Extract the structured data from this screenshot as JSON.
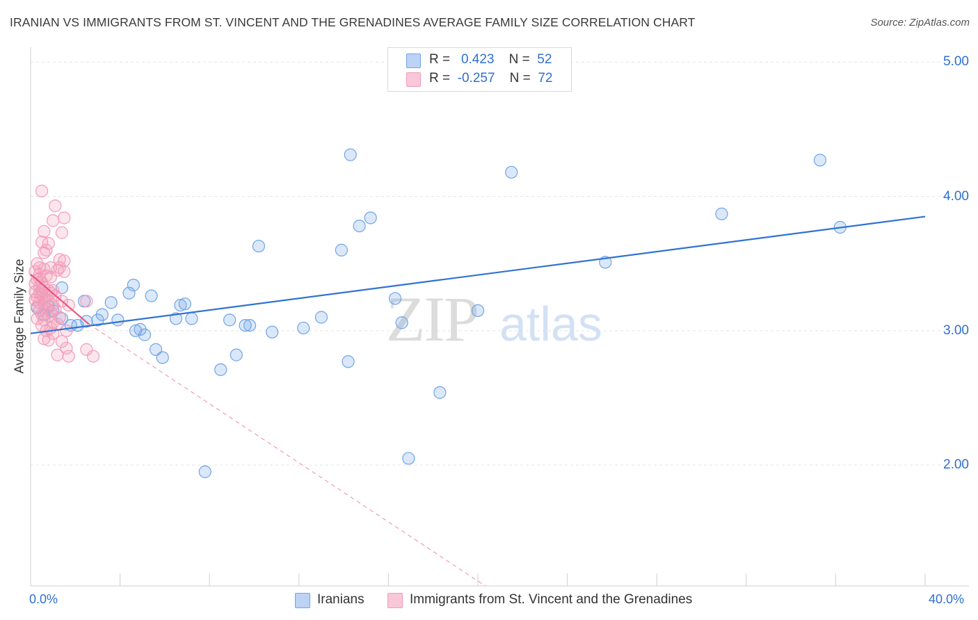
{
  "chart_data": {
    "type": "scatter",
    "title": "IRANIAN VS IMMIGRANTS FROM ST. VINCENT AND THE GRENADINES AVERAGE FAMILY SIZE CORRELATION CHART",
    "source": "Source: ZipAtlas.com",
    "ylabel": "Average Family Size",
    "xlim": [
      0,
      40
    ],
    "ylim": [
      1.1,
      5.1
    ],
    "y_ticks": [
      "2.00",
      "3.00",
      "4.00",
      "5.00"
    ],
    "x_tick_labels": [
      "0.0%",
      "40.0%"
    ],
    "grid": true,
    "legend_position": "top-center",
    "watermark": "ZIPatlas",
    "series": [
      {
        "name": "Iranians",
        "color": "#6fa3e6",
        "line_color": "#2f72d2",
        "r": "0.423",
        "n": "52",
        "trend": [
          [
            0,
            2.98
          ],
          [
            40,
            3.85
          ]
        ],
        "points": [
          [
            0.3,
            3.17
          ],
          [
            1.4,
            3.09
          ],
          [
            1.8,
            3.04
          ],
          [
            1.4,
            3.32
          ],
          [
            2.4,
            3.22
          ],
          [
            2.5,
            3.07
          ],
          [
            3.0,
            3.08
          ],
          [
            3.2,
            3.12
          ],
          [
            3.6,
            3.21
          ],
          [
            3.9,
            3.08
          ],
          [
            4.6,
            3.34
          ],
          [
            4.4,
            3.28
          ],
          [
            4.7,
            3.0
          ],
          [
            4.9,
            3.01
          ],
          [
            5.1,
            2.97
          ],
          [
            5.4,
            3.26
          ],
          [
            5.6,
            2.86
          ],
          [
            5.9,
            2.8
          ],
          [
            6.5,
            3.09
          ],
          [
            6.7,
            3.19
          ],
          [
            6.9,
            3.2
          ],
          [
            7.2,
            3.09
          ],
          [
            7.8,
            1.95
          ],
          [
            8.5,
            2.71
          ],
          [
            8.9,
            3.08
          ],
          [
            9.2,
            2.82
          ],
          [
            9.6,
            3.04
          ],
          [
            9.8,
            3.04
          ],
          [
            10.2,
            3.63
          ],
          [
            10.8,
            2.99
          ],
          [
            12.2,
            3.02
          ],
          [
            13.0,
            3.1
          ],
          [
            13.9,
            3.6
          ],
          [
            14.3,
            4.31
          ],
          [
            14.2,
            2.77
          ],
          [
            14.7,
            3.78
          ],
          [
            15.2,
            3.84
          ],
          [
            16.3,
            3.24
          ],
          [
            16.6,
            3.06
          ],
          [
            16.9,
            2.05
          ],
          [
            18.3,
            2.54
          ],
          [
            20.0,
            3.15
          ],
          [
            21.5,
            4.18
          ],
          [
            25.7,
            3.51
          ],
          [
            30.9,
            3.87
          ],
          [
            35.3,
            4.27
          ],
          [
            36.2,
            3.77
          ],
          [
            0.5,
            3.3
          ],
          [
            1.0,
            3.15
          ],
          [
            0.8,
            3.18
          ],
          [
            2.1,
            3.04
          ],
          [
            0.6,
            3.12
          ]
        ]
      },
      {
        "name": "Immigrants from St. Vincent and the Grenadines",
        "color": "#f29cb8",
        "line_color": "#e8557f",
        "r": "-0.257",
        "n": "72",
        "trend": [
          [
            0,
            3.42
          ],
          [
            2.6,
            3.05
          ]
        ],
        "trend_extended": [
          [
            2.6,
            3.05
          ],
          [
            21.7,
            0.95
          ]
        ],
        "points": [
          [
            0.5,
            4.04
          ],
          [
            1.1,
            3.93
          ],
          [
            1.5,
            3.84
          ],
          [
            1.0,
            3.82
          ],
          [
            1.4,
            3.73
          ],
          [
            0.6,
            3.74
          ],
          [
            0.8,
            3.65
          ],
          [
            0.5,
            3.66
          ],
          [
            0.6,
            3.58
          ],
          [
            0.7,
            3.6
          ],
          [
            1.3,
            3.53
          ],
          [
            1.5,
            3.52
          ],
          [
            0.3,
            3.5
          ],
          [
            0.4,
            3.47
          ],
          [
            0.6,
            3.46
          ],
          [
            0.9,
            3.47
          ],
          [
            1.2,
            3.45
          ],
          [
            1.5,
            3.44
          ],
          [
            0.2,
            3.44
          ],
          [
            0.4,
            3.42
          ],
          [
            0.7,
            3.41
          ],
          [
            0.9,
            3.4
          ],
          [
            0.3,
            3.38
          ],
          [
            0.5,
            3.36
          ],
          [
            0.2,
            3.35
          ],
          [
            0.4,
            3.33
          ],
          [
            0.6,
            3.32
          ],
          [
            0.8,
            3.3
          ],
          [
            1.0,
            3.3
          ],
          [
            0.2,
            3.29
          ],
          [
            0.4,
            3.28
          ],
          [
            0.5,
            3.27
          ],
          [
            0.7,
            3.26
          ],
          [
            1.1,
            3.26
          ],
          [
            0.3,
            3.25
          ],
          [
            0.6,
            3.24
          ],
          [
            0.2,
            3.23
          ],
          [
            0.8,
            3.22
          ],
          [
            1.4,
            3.22
          ],
          [
            2.5,
            3.22
          ],
          [
            0.4,
            3.21
          ],
          [
            0.6,
            3.2
          ],
          [
            1.0,
            3.19
          ],
          [
            1.7,
            3.19
          ],
          [
            0.3,
            3.18
          ],
          [
            0.7,
            3.17
          ],
          [
            1.1,
            3.16
          ],
          [
            0.4,
            3.15
          ],
          [
            0.9,
            3.14
          ],
          [
            0.5,
            3.12
          ],
          [
            0.8,
            3.11
          ],
          [
            1.3,
            3.1
          ],
          [
            0.3,
            3.09
          ],
          [
            0.6,
            3.08
          ],
          [
            1.0,
            3.06
          ],
          [
            1.2,
            3.05
          ],
          [
            0.5,
            3.04
          ],
          [
            0.9,
            3.02
          ],
          [
            0.7,
            3.0
          ],
          [
            1.6,
            3.0
          ],
          [
            1.0,
            2.98
          ],
          [
            0.6,
            2.94
          ],
          [
            0.8,
            2.93
          ],
          [
            1.4,
            2.92
          ],
          [
            1.6,
            2.87
          ],
          [
            2.5,
            2.86
          ],
          [
            1.2,
            2.82
          ],
          [
            1.7,
            2.81
          ],
          [
            2.8,
            2.81
          ],
          [
            0.9,
            3.28
          ],
          [
            0.4,
            3.39
          ],
          [
            1.3,
            3.47
          ]
        ]
      }
    ]
  }
}
